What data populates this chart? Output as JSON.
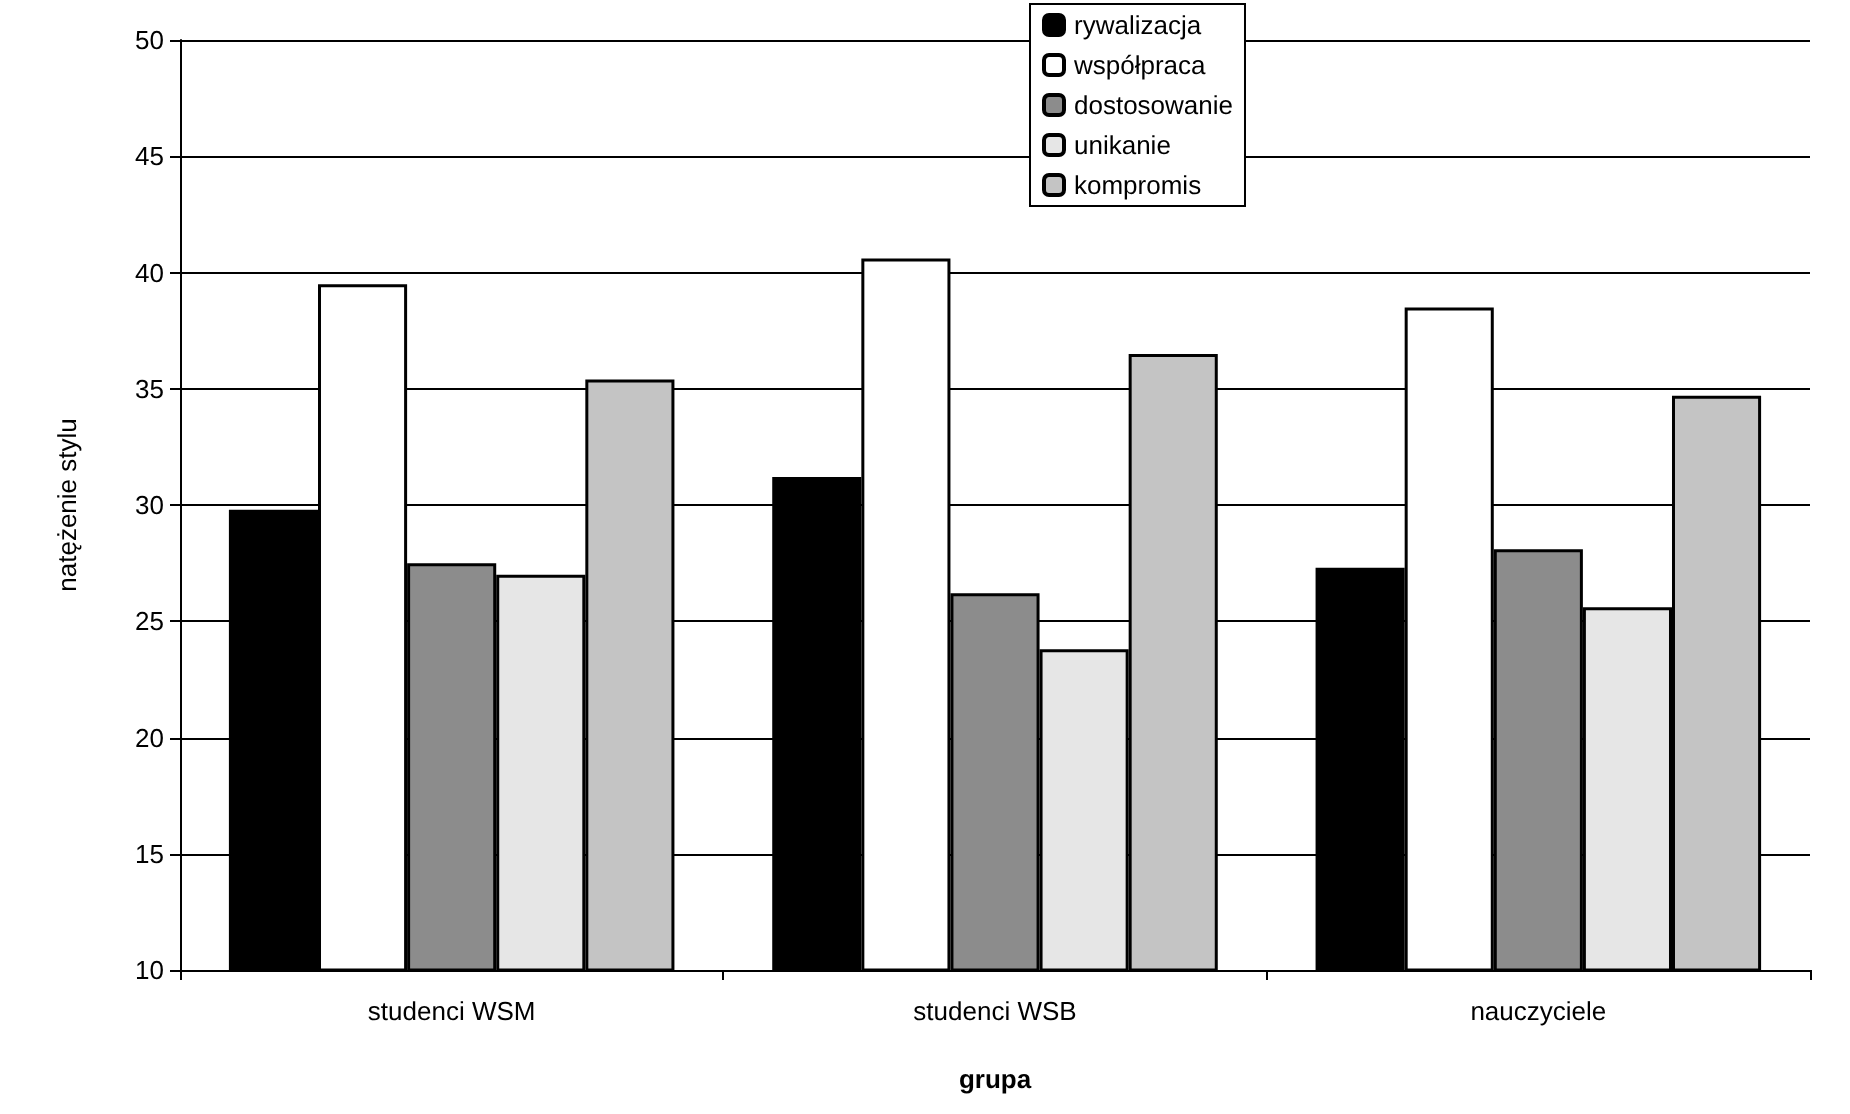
{
  "chart_data": {
    "type": "bar",
    "xlabel": "grupa",
    "ylabel": "natężenie stylu",
    "categories": [
      "studenci WSM",
      "studenci WSB",
      "nauczyciele"
    ],
    "series": [
      {
        "name": "rywalizacja",
        "color": "#000000",
        "values": [
          29.8,
          31.2,
          27.3
        ]
      },
      {
        "name": "współpraca",
        "color": "#ffffff",
        "values": [
          39.5,
          40.6,
          38.5
        ]
      },
      {
        "name": "dostosowanie",
        "color": "#8c8c8c",
        "values": [
          27.5,
          26.2,
          28.1
        ]
      },
      {
        "name": "unikanie",
        "color": "#e6e6e6",
        "values": [
          27.0,
          23.8,
          25.6
        ]
      },
      {
        "name": "kompromis",
        "color": "#c4c4c4",
        "values": [
          35.4,
          36.5,
          34.7
        ]
      }
    ],
    "ylim": [
      10,
      50
    ],
    "yticks": [
      10,
      15,
      20,
      25,
      30,
      35,
      40,
      45,
      50
    ],
    "grid": "y",
    "legend": "top"
  }
}
